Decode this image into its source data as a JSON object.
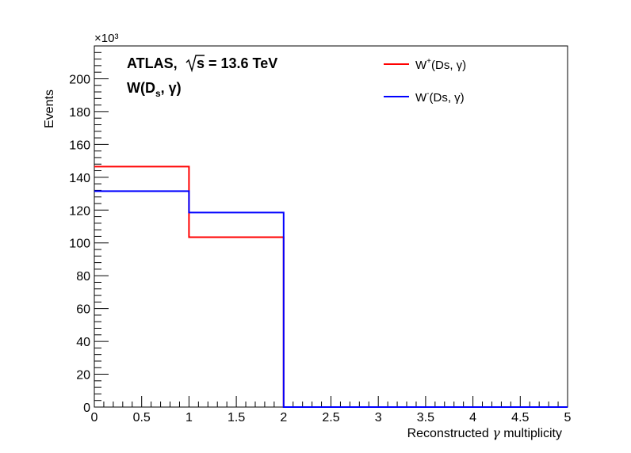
{
  "chart_data": {
    "type": "histogram",
    "xlabel_parts": [
      "Reconstructed  ",
      "γ",
      " multiplicity"
    ],
    "ylabel": "Events",
    "y_multiplier": "×10³",
    "xlim": [
      0,
      5
    ],
    "ylim": [
      0,
      220
    ],
    "y_unit_factor": 1000,
    "x_ticks": [
      "0",
      "0.5",
      "1",
      "1.5",
      "2",
      "2.5",
      "3",
      "3.5",
      "4",
      "4.5",
      "5"
    ],
    "y_ticks": [
      "0",
      "20",
      "40",
      "60",
      "80",
      "100",
      "120",
      "140",
      "160",
      "180",
      "200"
    ],
    "bin_edges": [
      0,
      1,
      2,
      3,
      4,
      5
    ],
    "series": [
      {
        "name": "W⁺(Ds, γ)",
        "color": "#ff0000",
        "values": [
          146.5,
          103.5,
          0,
          0,
          0
        ]
      },
      {
        "name": "W⁻(Ds, γ)",
        "color": "#0000ff",
        "values": [
          131.5,
          118.5,
          0,
          0,
          0
        ]
      }
    ],
    "legend": {
      "placement": "top-right",
      "entries": [
        {
          "base": "W",
          "sup": "+",
          "rest": "(Ds, γ)"
        },
        {
          "base": "W",
          "sup": "-",
          "rest": "(Ds, γ)"
        }
      ]
    },
    "annotations": {
      "experiment": "ATLAS,",
      "energy": "s = 13.6 TeV",
      "process_base": "W(D",
      "process_sub": "s",
      "process_rest": ", γ)"
    }
  }
}
